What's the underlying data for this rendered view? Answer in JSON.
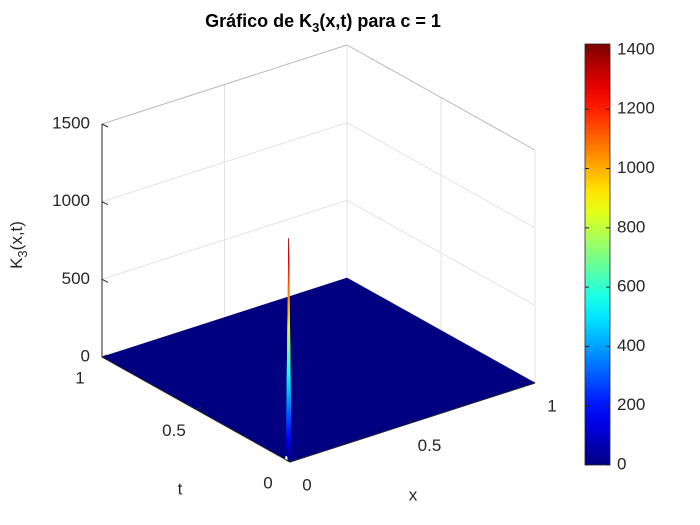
{
  "chart_data": {
    "type": "surface",
    "title": [
      "Gráfico de K",
      "3",
      "(x,t) para c = 1"
    ],
    "xlabel": "x",
    "ylabel": "t",
    "zlabel": [
      "K",
      "3",
      "(x,t)"
    ],
    "x": [
      0,
      0.01,
      0.02,
      0.03,
      0.05,
      0.1,
      0.25,
      0.5,
      0.75,
      1
    ],
    "y": [
      0,
      0.01,
      0.02,
      0.03,
      0.05,
      0.1,
      0.25,
      0.5,
      0.75,
      1
    ],
    "z": [
      [
        0,
        0,
        0,
        0,
        0,
        0,
        0,
        0,
        0,
        0
      ],
      [
        0,
        60,
        0,
        0,
        0,
        0,
        0,
        0,
        0,
        0
      ],
      [
        80,
        1420,
        50,
        0,
        0,
        0,
        0,
        0,
        0,
        0
      ],
      [
        0,
        40,
        0,
        0,
        0,
        0,
        0,
        0,
        0,
        0
      ],
      [
        0,
        0,
        0,
        0,
        0,
        0,
        0,
        0,
        0,
        0
      ],
      [
        0,
        0,
        0,
        0,
        0,
        0,
        0,
        0,
        0,
        0
      ],
      [
        0,
        0,
        0,
        0,
        0,
        0,
        0,
        0,
        0,
        0
      ],
      [
        0,
        0,
        0,
        0,
        0,
        0,
        0,
        0,
        0,
        0
      ],
      [
        0,
        0,
        0,
        0,
        0,
        0,
        0,
        0,
        0,
        0
      ],
      [
        0,
        0,
        0,
        0,
        0,
        0,
        0,
        0,
        0,
        0
      ]
    ],
    "xlim": [
      0,
      1
    ],
    "xticks": [
      0,
      0.5,
      1
    ],
    "ylim": [
      0,
      1
    ],
    "yticks": [
      0,
      0.5,
      1
    ],
    "zlim": [
      0,
      1500
    ],
    "zticks": [
      0,
      500,
      1000,
      1500
    ],
    "colormap": "jet",
    "clim": [
      0,
      1420
    ],
    "cticks": [
      0,
      200,
      400,
      600,
      800,
      1000,
      1200,
      1400
    ],
    "grid": true
  }
}
